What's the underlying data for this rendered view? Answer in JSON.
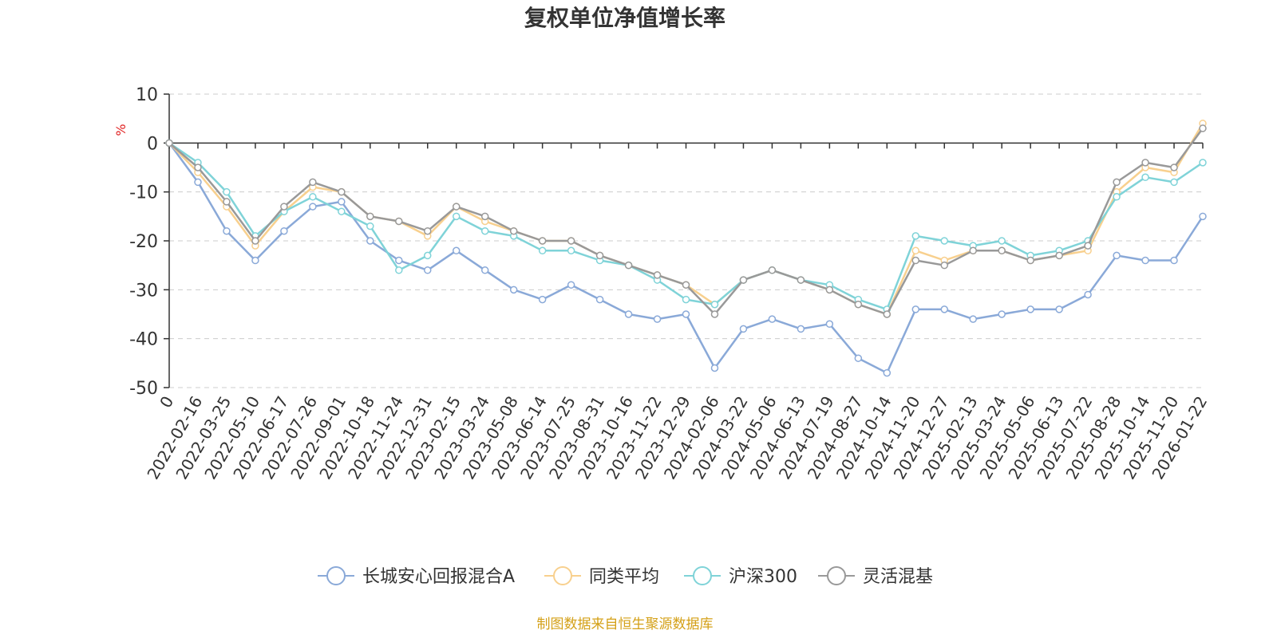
{
  "chart_data": {
    "type": "line",
    "title": "复权单位净值增长率",
    "ylabel": "%",
    "xlabel": "",
    "ylim": [
      -50,
      10
    ],
    "yticks": [
      10,
      0,
      -10,
      -20,
      -30,
      -40,
      -50
    ],
    "grid": true,
    "legend_position": "bottom-center",
    "categories": [
      "0",
      "2022-02-16",
      "2022-03-25",
      "2022-05-10",
      "2022-06-17",
      "2022-07-26",
      "2022-09-01",
      "2022-10-18",
      "2022-11-24",
      "2022-12-31",
      "2023-02-15",
      "2023-03-24",
      "2023-05-08",
      "2023-06-14",
      "2023-07-25",
      "2023-08-31",
      "2023-10-16",
      "2023-11-22",
      "2023-12-29",
      "2024-02-06",
      "2024-03-22",
      "2024-05-06",
      "2024-06-13",
      "2024-07-19",
      "2024-08-27",
      "2024-10-14",
      "2024-11-20",
      "2024-12-27",
      "2025-02-13",
      "2025-03-24",
      "2025-05-06",
      "2025-06-13",
      "2025-07-22",
      "2025-08-28",
      "2025-10-14",
      "2025-11-20",
      "2026-01-22"
    ],
    "series": [
      {
        "name": "长城安心回报混合A",
        "color": "#8aa9d8",
        "values": [
          0,
          -8,
          -18,
          -24,
          -18,
          -13,
          -12,
          -20,
          -24,
          -26,
          -22,
          -26,
          -30,
          -32,
          -29,
          -32,
          -35,
          -36,
          -35,
          -46,
          -38,
          -36,
          -38,
          -37,
          -44,
          -47,
          -34,
          -34,
          -36,
          -35,
          -34,
          -34,
          -31,
          -23,
          -24,
          -24,
          -15
        ]
      },
      {
        "name": "同类平均",
        "color": "#f8d08e",
        "values": [
          0,
          -6,
          -13,
          -21,
          -14,
          -9,
          -10,
          -15,
          -16,
          -19,
          -13,
          -16,
          -18,
          -20,
          -20,
          -23,
          -25,
          -27,
          -29,
          -33,
          -28,
          -26,
          -28,
          -30,
          -33,
          -35,
          -22,
          -24,
          -22,
          -22,
          -24,
          -23,
          -22,
          -10,
          -5,
          -6,
          4
        ]
      },
      {
        "name": "沪深300",
        "color": "#7fd3d8",
        "values": [
          0,
          -4,
          -10,
          -19,
          -14,
          -11,
          -14,
          -17,
          -26,
          -23,
          -15,
          -18,
          -19,
          -22,
          -22,
          -24,
          -25,
          -28,
          -32,
          -33,
          -28,
          -26,
          -28,
          -29,
          -32,
          -34,
          -19,
          -20,
          -21,
          -20,
          -23,
          -22,
          -20,
          -11,
          -7,
          -8,
          -4
        ]
      },
      {
        "name": "灵活混基",
        "color": "#999999",
        "values": [
          0,
          -5,
          -12,
          -20,
          -13,
          -8,
          -10,
          -15,
          -16,
          -18,
          -13,
          -15,
          -18,
          -20,
          -20,
          -23,
          -25,
          -27,
          -29,
          -35,
          -28,
          -26,
          -28,
          -30,
          -33,
          -35,
          -24,
          -25,
          -22,
          -22,
          -24,
          -23,
          -21,
          -8,
          -4,
          -5,
          3
        ]
      }
    ]
  },
  "source_note": "制图数据来自恒生聚源数据库"
}
